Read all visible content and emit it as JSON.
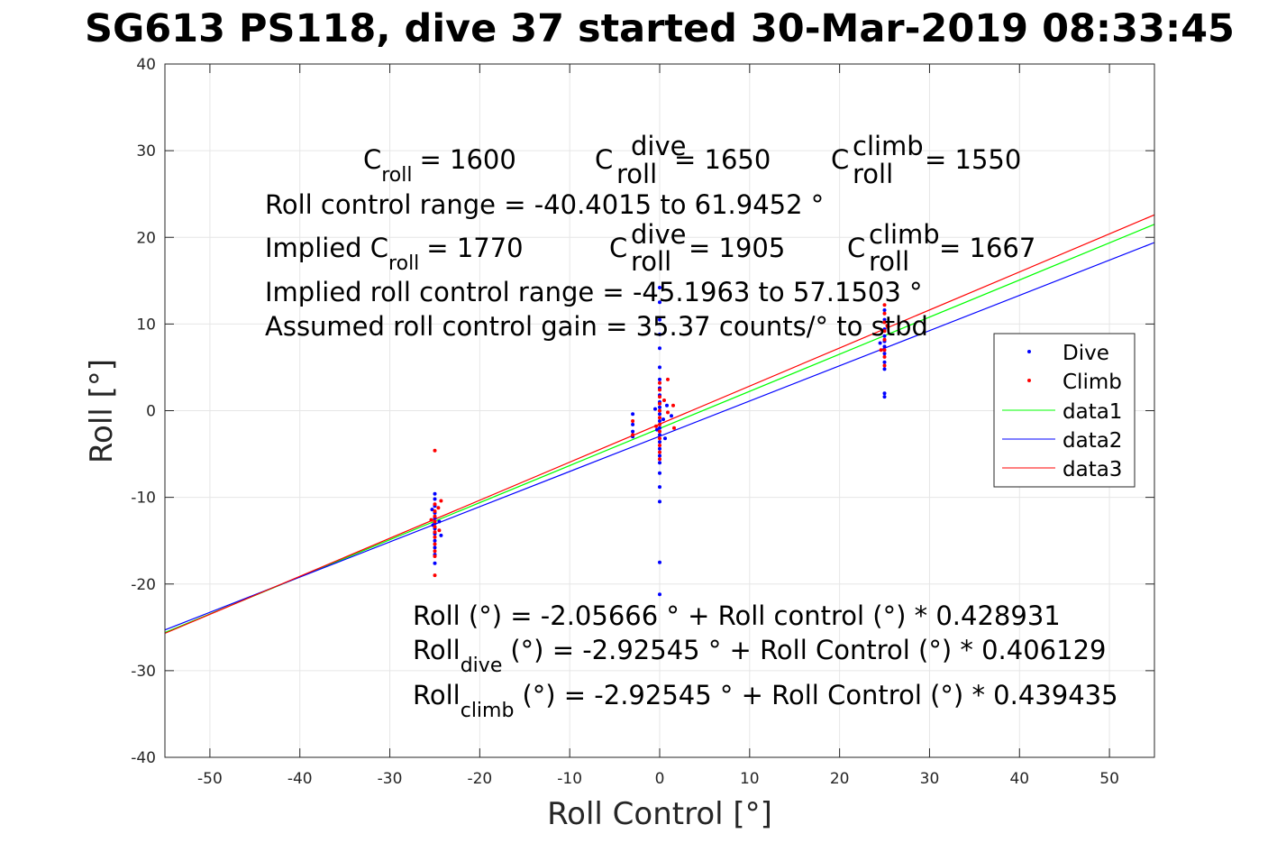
{
  "chart_data": {
    "type": "scatter",
    "title": "SG613 PS118, dive 37 started 30-Mar-2019 08:33:45",
    "xlabel": "Roll Control [°]",
    "ylabel": "Roll [°]",
    "xlim": [
      -55,
      55
    ],
    "ylim": [
      -40,
      40
    ],
    "xticks": [
      -50,
      -40,
      -30,
      -20,
      -10,
      0,
      10,
      20,
      30,
      40,
      50
    ],
    "yticks": [
      -40,
      -30,
      -20,
      -10,
      0,
      10,
      20,
      30,
      40
    ],
    "grid": true,
    "legend_position": "right",
    "colors": {
      "dive": "#0000ff",
      "climb": "#ff0000",
      "data1": "#00ff00",
      "data2": "#0000ff",
      "data3": "#ff0000"
    },
    "series": [
      {
        "name": "Dive",
        "kind": "points",
        "color": "#0000ff",
        "points": [
          [
            -25,
            -9.6
          ],
          [
            -25,
            -10.2
          ],
          [
            -25,
            -11.0
          ],
          [
            -25,
            -11.8
          ],
          [
            -25,
            -12.4
          ],
          [
            -25,
            -13.0
          ],
          [
            -25,
            -13.6
          ],
          [
            -25,
            -14.2
          ],
          [
            -25,
            -15.0
          ],
          [
            -25,
            -15.8
          ],
          [
            -25,
            -16.6
          ],
          [
            -25,
            -17.6
          ],
          [
            -24.5,
            -12.8
          ],
          [
            -24.3,
            -14.4
          ],
          [
            -25.3,
            -11.4
          ],
          [
            -25.2,
            -13.2
          ],
          [
            -3,
            -0.4
          ],
          [
            -3,
            -1.6
          ],
          [
            -3,
            -2.4
          ],
          [
            -3,
            -3.0
          ],
          [
            0,
            14.2
          ],
          [
            0,
            12.5
          ],
          [
            0,
            10.5
          ],
          [
            0,
            8.8
          ],
          [
            0,
            7.2
          ],
          [
            0,
            5.0
          ],
          [
            0,
            3.6
          ],
          [
            0,
            2.6
          ],
          [
            0,
            1.8
          ],
          [
            0,
            1.0
          ],
          [
            0,
            0.4
          ],
          [
            0,
            -0.4
          ],
          [
            0,
            -1.2
          ],
          [
            0,
            -2.0
          ],
          [
            0,
            -2.8
          ],
          [
            0,
            -3.6
          ],
          [
            0,
            -4.4
          ],
          [
            0,
            -5.2
          ],
          [
            0,
            -6.0
          ],
          [
            0,
            -7.2
          ],
          [
            0,
            -8.8
          ],
          [
            0,
            -10.5
          ],
          [
            0,
            -17.5
          ],
          [
            0,
            -21.2
          ],
          [
            0.4,
            -1.0
          ],
          [
            -0.3,
            -2.2
          ],
          [
            0.6,
            -3.2
          ],
          [
            -0.5,
            0.2
          ],
          [
            0.8,
            0.6
          ],
          [
            1.3,
            -0.6
          ],
          [
            25,
            11.6
          ],
          [
            25,
            10.5
          ],
          [
            25,
            9.4
          ],
          [
            25,
            8.6
          ],
          [
            25,
            8.0
          ],
          [
            25,
            7.4
          ],
          [
            25,
            6.6
          ],
          [
            25,
            5.6
          ],
          [
            25,
            4.8
          ],
          [
            25,
            2.0
          ],
          [
            25,
            1.6
          ],
          [
            24.5,
            7.8
          ]
        ]
      },
      {
        "name": "Climb",
        "kind": "points",
        "color": "#ff0000",
        "points": [
          [
            -25,
            -4.6
          ],
          [
            -25,
            -10.8
          ],
          [
            -25,
            -11.6
          ],
          [
            -25,
            -12.2
          ],
          [
            -25,
            -12.8
          ],
          [
            -25,
            -13.4
          ],
          [
            -25,
            -14.0
          ],
          [
            -25,
            -14.6
          ],
          [
            -25,
            -15.4
          ],
          [
            -25,
            -16.2
          ],
          [
            -25,
            -16.8
          ],
          [
            -25,
            -19.0
          ],
          [
            -24.3,
            -10.4
          ],
          [
            -24.6,
            -11.2
          ],
          [
            -25.4,
            -12.6
          ],
          [
            -24.5,
            -13.8
          ],
          [
            -3,
            -1.2
          ],
          [
            -3,
            -2.8
          ],
          [
            0,
            3.2
          ],
          [
            0,
            2.4
          ],
          [
            0,
            1.6
          ],
          [
            0,
            0.8
          ],
          [
            0,
            0.0
          ],
          [
            0,
            -0.8
          ],
          [
            0,
            -1.6
          ],
          [
            0,
            -2.4
          ],
          [
            0,
            -3.2
          ],
          [
            0,
            -4.0
          ],
          [
            0,
            -4.8
          ],
          [
            0,
            -5.6
          ],
          [
            0.5,
            1.2
          ],
          [
            -0.4,
            -1.8
          ],
          [
            0.9,
            -0.2
          ],
          [
            1.5,
            0.6
          ],
          [
            0.9,
            3.6
          ],
          [
            1.6,
            -2.0
          ],
          [
            25,
            12.2
          ],
          [
            25,
            11.2
          ],
          [
            25,
            10.2
          ],
          [
            25,
            9.2
          ],
          [
            25,
            8.2
          ],
          [
            25,
            7.0
          ],
          [
            25,
            6.2
          ],
          [
            25,
            5.2
          ],
          [
            24.6,
            7.0
          ],
          [
            25.3,
            9.8
          ]
        ]
      },
      {
        "name": "data1",
        "kind": "line",
        "color": "#00ff00",
        "x": [
          -55,
          55
        ],
        "y": [
          -25.6,
          21.5
        ]
      },
      {
        "name": "data2",
        "kind": "line",
        "color": "#0000ff",
        "x": [
          -55,
          55
        ],
        "y": [
          -25.3,
          19.4
        ]
      },
      {
        "name": "data3",
        "kind": "line",
        "color": "#ff0000",
        "x": [
          -55,
          55
        ],
        "y": [
          -25.7,
          22.6
        ]
      }
    ],
    "annotations": {
      "c_roll_label": "C",
      "c_roll_sub": "roll",
      "c_roll_value": "= 1600",
      "c_dive_label": "C",
      "c_dive_sup": "dive",
      "c_dive_sub": "roll",
      "c_dive_value": "= 1650",
      "c_climb_label": "C",
      "c_climb_sup": "climb",
      "c_climb_sub": "roll",
      "c_climb_value": "= 1550",
      "roll_control_range": "Roll control range = -40.4015 to 61.9452 °",
      "implied_label": "Implied C",
      "implied_sub": "roll",
      "implied_value": "= 1770",
      "implied_dive_label": "C",
      "implied_dive_sup": "dive",
      "implied_dive_sub": "roll",
      "implied_dive_value": "= 1905",
      "implied_climb_label": "C",
      "implied_climb_sup": "climb",
      "implied_climb_sub": "roll",
      "implied_climb_value": "= 1667",
      "implied_range": "Implied roll control range = -45.1963 to 57.1503 °",
      "gain": "Assumed roll control gain = 35.37 counts/° to stbd",
      "fit_roll": "Roll (°) = -2.05666 ° + Roll control (°) * 0.428931",
      "fit_dive_label": "Roll",
      "fit_dive_sub": "dive",
      "fit_dive_rest": "(°) = -2.92545 ° + Roll Control (°) * 0.406129",
      "fit_climb_label": "Roll",
      "fit_climb_sub": "climb",
      "fit_climb_rest": "(°) = -2.92545 ° + Roll Control (°) * 0.439435"
    }
  }
}
